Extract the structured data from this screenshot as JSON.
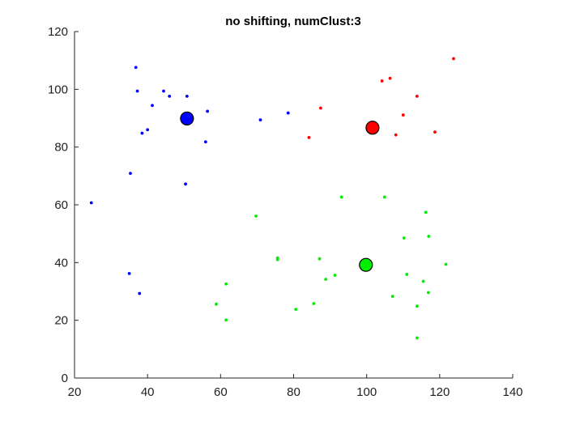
{
  "chart_data": {
    "type": "scatter",
    "title": "no shifting, numClust:3",
    "xlabel": "",
    "ylabel": "",
    "xlim": [
      20,
      140
    ],
    "ylim": [
      0,
      120
    ],
    "xticks": [
      "20",
      "40",
      "60",
      "80",
      "100",
      "120",
      "140"
    ],
    "yticks": [
      "0",
      "20",
      "40",
      "60",
      "80",
      "100",
      "120"
    ],
    "xtick_values": [
      20,
      40,
      60,
      80,
      100,
      120,
      140
    ],
    "ytick_values": [
      0,
      20,
      40,
      60,
      80,
      100,
      120
    ],
    "grid": false,
    "series": [
      {
        "name": "cluster-blue",
        "color": "#0000ff",
        "x": [
          36.8,
          37.2,
          41.3,
          44.4,
          46.0,
          50.8,
          56.4,
          40.0,
          38.5,
          70.9,
          78.5,
          55.9,
          35.3,
          50.4,
          24.6,
          35.0,
          37.8
        ],
        "y": [
          107.6,
          99.4,
          94.4,
          99.4,
          97.6,
          97.6,
          92.4,
          86.0,
          84.8,
          89.4,
          91.8,
          81.8,
          70.9,
          67.2,
          60.7,
          36.2,
          29.3
        ]
      },
      {
        "name": "cluster-red",
        "color": "#ff0000",
        "x": [
          123.8,
          104.2,
          106.4,
          113.8,
          87.4,
          110.0,
          84.2,
          108.0,
          118.7
        ],
        "y": [
          110.6,
          102.9,
          103.8,
          97.6,
          93.5,
          91.1,
          83.3,
          84.2,
          85.2
        ]
      },
      {
        "name": "cluster-green",
        "color": "#00ee00",
        "x": [
          93.1,
          104.9,
          116.2,
          69.7,
          117.0,
          110.2,
          75.6,
          75.6,
          87.1,
          91.3,
          88.8,
          111.0,
          115.5,
          121.7,
          116.9,
          61.5,
          107.1,
          58.8,
          80.6,
          85.5,
          113.8,
          61.5,
          113.8
        ],
        "y": [
          62.7,
          62.7,
          57.4,
          56.1,
          49.1,
          48.5,
          41.6,
          41.0,
          41.3,
          35.6,
          34.2,
          35.9,
          33.5,
          39.4,
          29.6,
          32.6,
          28.3,
          25.6,
          23.8,
          25.8,
          24.9,
          20.1,
          13.9
        ]
      }
    ],
    "centroids": [
      {
        "name": "centroid-blue",
        "color": "#0000ff",
        "x": 50.8,
        "y": 89.9
      },
      {
        "name": "centroid-red",
        "color": "#ff0000",
        "x": 101.6,
        "y": 86.7
      },
      {
        "name": "centroid-green",
        "color": "#00ee00",
        "x": 99.8,
        "y": 39.2
      }
    ]
  }
}
